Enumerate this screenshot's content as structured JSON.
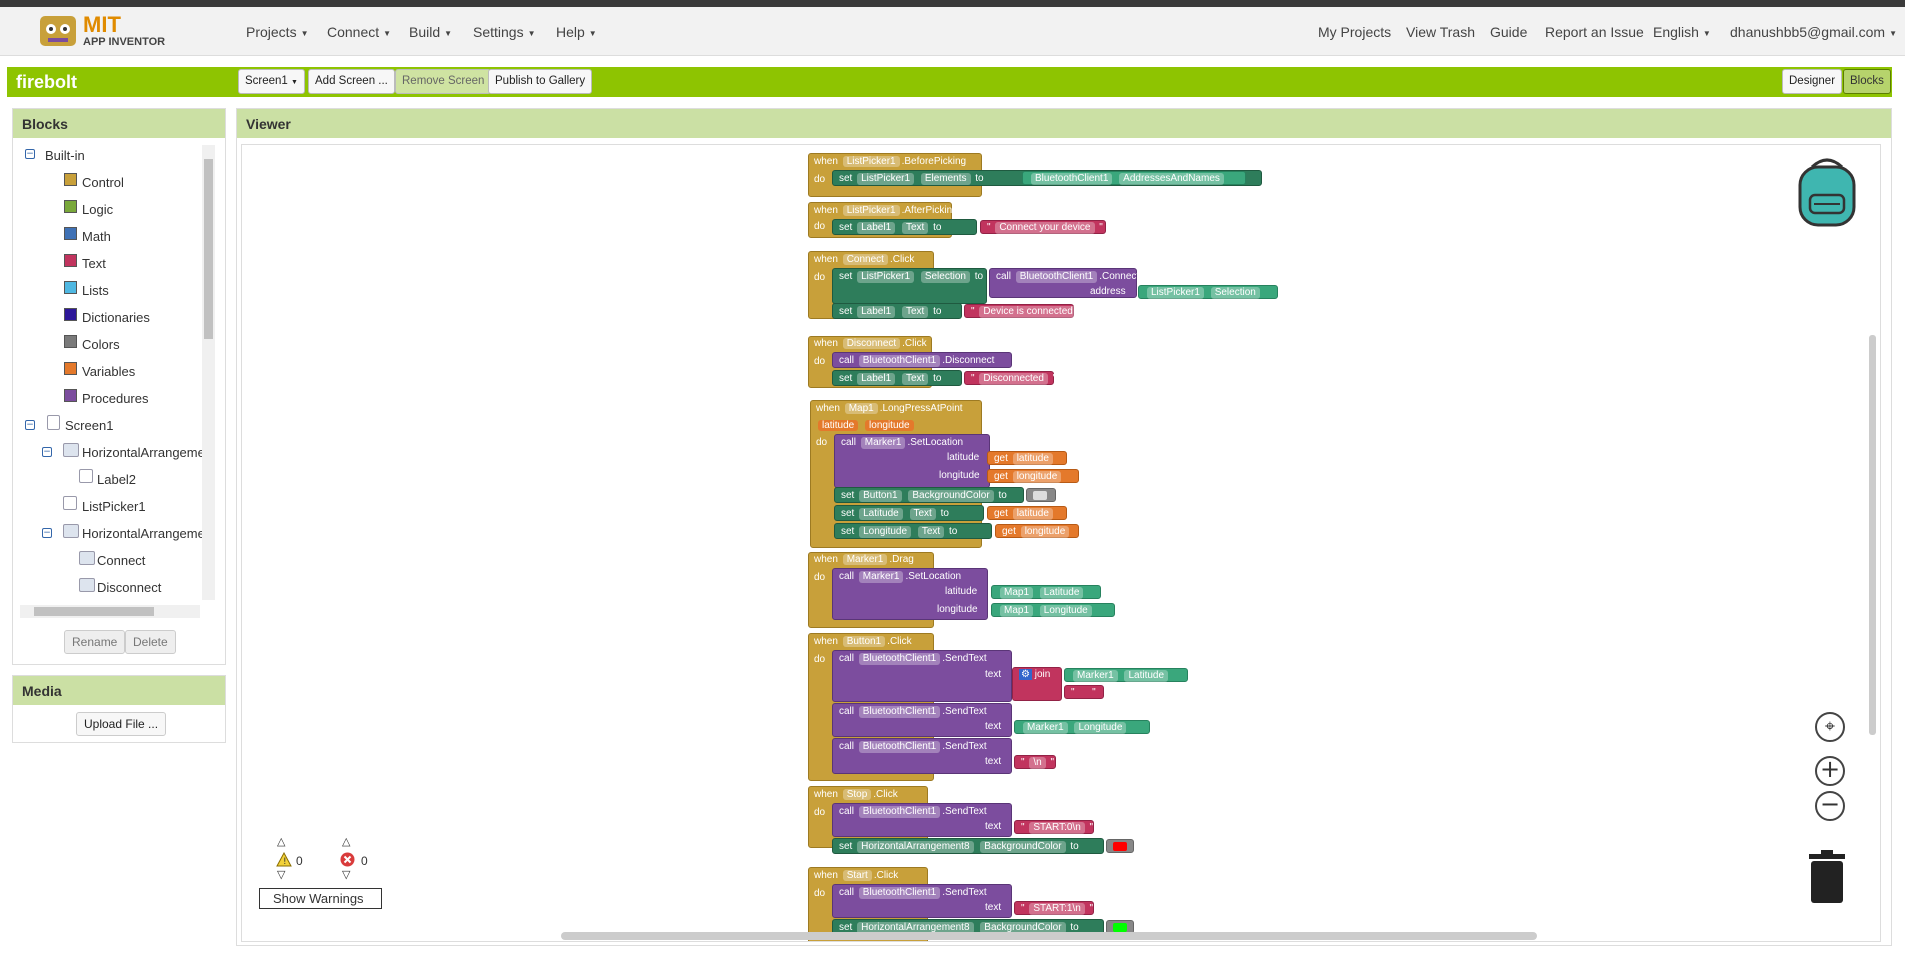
{
  "app": {
    "logo_top": "MIT",
    "logo_bottom": "APP INVENTOR",
    "project_name": "firebolt"
  },
  "menu": {
    "projects": "Projects",
    "connect": "Connect",
    "build": "Build",
    "settings": "Settings",
    "help": "Help"
  },
  "right_menu": {
    "my_projects": "My Projects",
    "view_trash": "View Trash",
    "guide": "Guide",
    "report": "Report an Issue",
    "language": "English",
    "account": "dhanushbb5@gmail.com"
  },
  "toolbar": {
    "screen_select": "Screen1",
    "add_screen": "Add Screen ...",
    "remove_screen": "Remove Screen",
    "publish": "Publish to Gallery",
    "designer": "Designer",
    "blocks": "Blocks"
  },
  "blocks_panel": {
    "title": "Blocks",
    "builtin": "Built-in",
    "items": [
      {
        "label": "Control",
        "color": "#c8a03a"
      },
      {
        "label": "Logic",
        "color": "#79a83a"
      },
      {
        "label": "Math",
        "color": "#3f71b5"
      },
      {
        "label": "Text",
        "color": "#c1345e"
      },
      {
        "label": "Lists",
        "color": "#4fb8e2"
      },
      {
        "label": "Dictionaries",
        "color": "#2d1799"
      },
      {
        "label": "Colors",
        "color": "#7a7a7a"
      },
      {
        "label": "Variables",
        "color": "#e4792b"
      },
      {
        "label": "Procedures",
        "color": "#7c4d9e"
      }
    ],
    "components": [
      "Screen1",
      "HorizontalArrangemer",
      "Label2",
      "ListPicker1",
      "HorizontalArrangemer",
      "Connect",
      "Disconnect"
    ],
    "rename": "Rename",
    "delete": "Delete"
  },
  "media": {
    "title": "Media",
    "upload": "Upload File ..."
  },
  "viewer": {
    "title": "Viewer"
  },
  "warnings": {
    "warn_count": "0",
    "error_count": "0",
    "show_warnings": "Show Warnings"
  },
  "code": {
    "b1": {
      "when": "when",
      "comp": "ListPicker1",
      "event": ".BeforePicking",
      "do": "do",
      "set": "set",
      "setcomp": "ListPicker1",
      "prop": "Elements",
      "to": "to",
      "val_comp": "BluetoothClient1",
      "val_prop": "AddressesAndNames"
    },
    "b2": {
      "when": "when",
      "comp": "ListPicker1",
      "event": ".AfterPicking",
      "do": "do",
      "set": "set",
      "setcomp": "Label1",
      "prop": "Text",
      "to": "to",
      "text": "Connect your device"
    },
    "b3": {
      "when": "when",
      "comp": "Connect",
      "event": ".Click",
      "do": "do",
      "set": "set",
      "setcomp": "ListPicker1",
      "prop": "Selection",
      "to": "to",
      "call": "call",
      "callcomp": "BluetoothClient1",
      "method": ".Connect",
      "address": "address",
      "argcomp": "ListPicker1",
      "argprop": "Selection",
      "set2comp": "Label1",
      "set2prop": "Text",
      "text": "Device is connected"
    },
    "b4": {
      "when": "when",
      "comp": "Disconnect",
      "event": ".Click",
      "do": "do",
      "call": "call",
      "callcomp": "BluetoothClient1",
      "method": ".Disconnect",
      "set": "set",
      "setcomp": "Label1",
      "prop": "Text",
      "to": "to",
      "text": "Disconnected"
    },
    "b5": {
      "when": "when",
      "comp": "Map1",
      "event": ".LongPressAtPoint",
      "p1": "latitude",
      "p2": "longitude",
      "do": "do",
      "call": "call",
      "callcomp": "Marker1",
      "method": ".SetLocation",
      "latitude": "latitude",
      "longitude": "longitude",
      "get": "get",
      "set": "set",
      "s1comp": "Button1",
      "s1prop": "BackgroundColor",
      "to": "to",
      "s2comp": "Latitude",
      "s2prop": "Text",
      "s3comp": "Longitude",
      "s3prop": "Text"
    },
    "b6": {
      "when": "when",
      "comp": "Marker1",
      "event": ".Drag",
      "do": "do",
      "call": "call",
      "callcomp": "Marker1",
      "method": ".SetLocation",
      "latitude": "latitude",
      "longitude": "longitude",
      "a1comp": "Map1",
      "a1prop": "Latitude",
      "a2comp": "Map1",
      "a2prop": "Longitude"
    },
    "b7": {
      "when": "when",
      "comp": "Button1",
      "event": ".Click",
      "do": "do",
      "call": "call",
      "callcomp": "BluetoothClient1",
      "method": ".SendText",
      "text": "text",
      "join": "join",
      "j1comp": "Marker1",
      "j1prop": "Latitude",
      "j2": " ",
      "a2comp": "Marker1",
      "a2prop": "Longitude",
      "a3": "\\n"
    },
    "b8": {
      "when": "when",
      "comp": "Stop",
      "event": ".Click",
      "do": "do",
      "call": "call",
      "callcomp": "BluetoothClient1",
      "method": ".SendText",
      "text": "text",
      "val": "START:0\\n",
      "set": "set",
      "setcomp": "HorizontalArrangement8",
      "prop": "BackgroundColor",
      "to": "to",
      "color": "#ff0000"
    },
    "b9": {
      "when": "when",
      "comp": "Start",
      "event": ".Click",
      "do": "do",
      "call": "call",
      "callcomp": "BluetoothClient1",
      "method": ".SendText",
      "text": "text",
      "val": "START:1\\n",
      "set": "set",
      "setcomp": "HorizontalArrangement8",
      "prop": "BackgroundColor",
      "to": "to",
      "color": "#00ff00"
    }
  }
}
